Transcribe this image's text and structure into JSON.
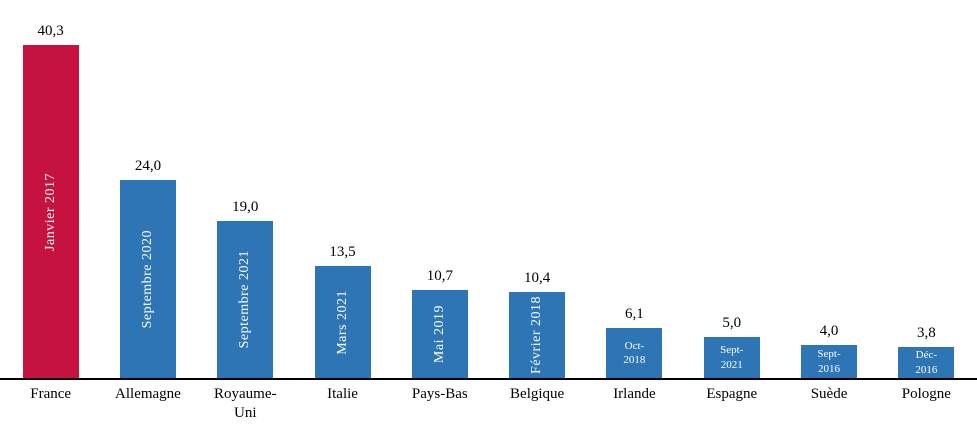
{
  "chart_data": {
    "type": "bar",
    "title": "",
    "xlabel": "",
    "ylabel": "",
    "grid": false,
    "legend": false,
    "ylim": [
      0,
      42
    ],
    "highlight_index": 0,
    "colors": {
      "highlight_bar": "#C51240",
      "default_bar": "#2E75B6",
      "value_text": "#000000",
      "bar_text": "#FFFFFF",
      "axis": "#000000"
    },
    "categories": [
      "France",
      "Allemagne",
      "Royaume-Uni",
      "Italie",
      "Pays-Bas",
      "Belgique",
      "Irlande",
      "Espagne",
      "Suède",
      "Pologne"
    ],
    "values": [
      40.3,
      24.0,
      19.0,
      13.5,
      10.7,
      10.4,
      6.1,
      5.0,
      4.0,
      3.8
    ],
    "value_labels": [
      "40,3",
      "24,0",
      "19,0",
      "13,5",
      "10,7",
      "10,4",
      "6,1",
      "5,0",
      "4,0",
      "3,8"
    ],
    "bar_period_labels": [
      "Janvier 2017",
      "Septembre 2020",
      "Septembre 2021",
      "Mars 2021",
      "Mai 2019",
      "Février 2018",
      "Oct-2018",
      "Sept-2021",
      "Sept-2016",
      "Déc-2016"
    ],
    "bar_period_orientations": [
      "vertical",
      "vertical",
      "vertical",
      "vertical",
      "vertical",
      "vertical",
      "horizontal",
      "horizontal",
      "horizontal",
      "horizontal"
    ]
  }
}
